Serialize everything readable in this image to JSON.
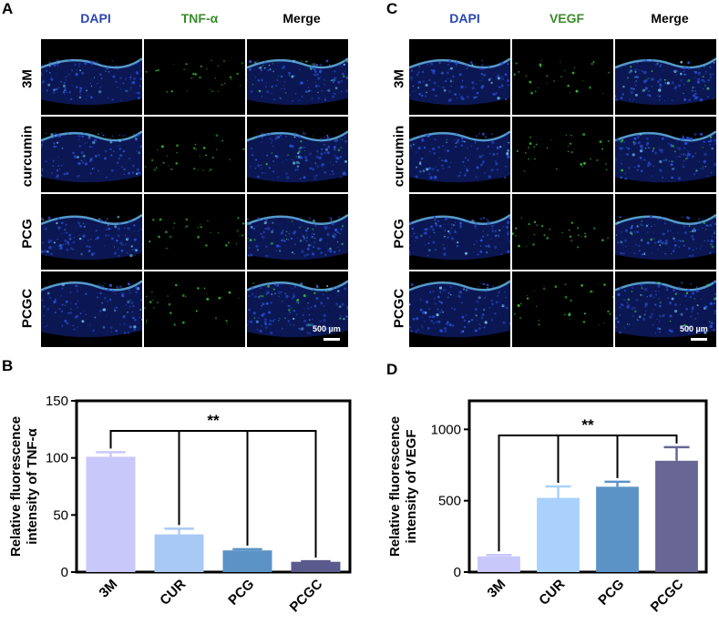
{
  "panels": {
    "A": "A",
    "B": "B",
    "C": "C",
    "D": "D"
  },
  "panelA": {
    "headers": [
      "DAPI",
      "TNF-α",
      "Merge"
    ],
    "header_colors": [
      "#2a47b0",
      "#3b8a2a",
      "#000000"
    ],
    "rows": [
      "3M",
      "curcumin",
      "PCG",
      "PCGC"
    ],
    "scale_label": "500 µm"
  },
  "panelC": {
    "headers": [
      "DAPI",
      "VEGF",
      "Merge"
    ],
    "header_colors": [
      "#2a47b0",
      "#3b8a2a",
      "#000000"
    ],
    "rows": [
      "3M",
      "curcumin",
      "PCG",
      "PCGC"
    ],
    "scale_label": "500 µm"
  },
  "chart_data": [
    {
      "type": "bar",
      "panel": "B",
      "categories": [
        "3M",
        "CUR",
        "PCG",
        "PCGC"
      ],
      "values": [
        101,
        33,
        19,
        9
      ],
      "errors": [
        4,
        5,
        1,
        0.5
      ],
      "colors": [
        "#c9c8fb",
        "#a9c9f5",
        "#5b93c7",
        "#5a5a8c"
      ],
      "ylabel": "Relative fluorescence intensity of TNF-α",
      "ylim": [
        0,
        150
      ],
      "yticks": [
        0,
        50,
        100,
        150
      ],
      "significance": "**"
    },
    {
      "type": "bar",
      "panel": "D",
      "categories": [
        "3M",
        "CUR",
        "PCG",
        "PCGC"
      ],
      "values": [
        110,
        520,
        598,
        780
      ],
      "errors": [
        10,
        80,
        35,
        95
      ],
      "colors": [
        "#c9c8fb",
        "#a9d1fb",
        "#5b93c7",
        "#676694"
      ],
      "ylabel": "Relative fluorescence intensity of VEGF",
      "ylim": [
        0,
        1200
      ],
      "yticks": [
        0,
        500,
        1000
      ],
      "significance": "**"
    }
  ]
}
